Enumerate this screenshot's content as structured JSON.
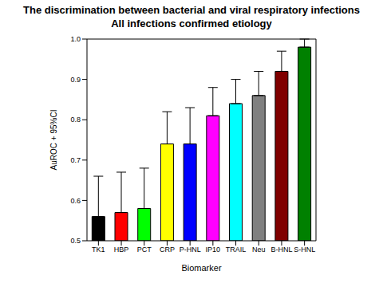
{
  "chart_data": {
    "type": "bar",
    "title": "The discrimination between bacterial and viral respiratory infections",
    "subtitle": "All infections confirmed etiology",
    "x_label": "Biomarker",
    "y_label": "AuROC + 95%CI",
    "categories": [
      "TK1",
      "HBP",
      "PCT",
      "CRP",
      "P-HNL",
      "IP10",
      "TRAIL",
      "Neu",
      "B-HNL",
      "S-HNL"
    ],
    "values": [
      0.56,
      0.57,
      0.58,
      0.74,
      0.74,
      0.81,
      0.84,
      0.86,
      0.92,
      0.98
    ],
    "errors": [
      0.1,
      0.1,
      0.1,
      0.08,
      0.09,
      0.07,
      0.06,
      0.06,
      0.05,
      0.02
    ],
    "colors": [
      "#000000",
      "#ff0000",
      "#00ff00",
      "#ffff00",
      "#0000ff",
      "#ff00ff",
      "#00ffff",
      "#808080",
      "#800000",
      "#008000"
    ],
    "ylim": [
      0.5,
      1.0
    ],
    "yticks": [
      0.5,
      0.6,
      0.7,
      0.8,
      0.9,
      {
        "value": 1,
        "label": "1.0"
      }
    ],
    "grid": false
  }
}
